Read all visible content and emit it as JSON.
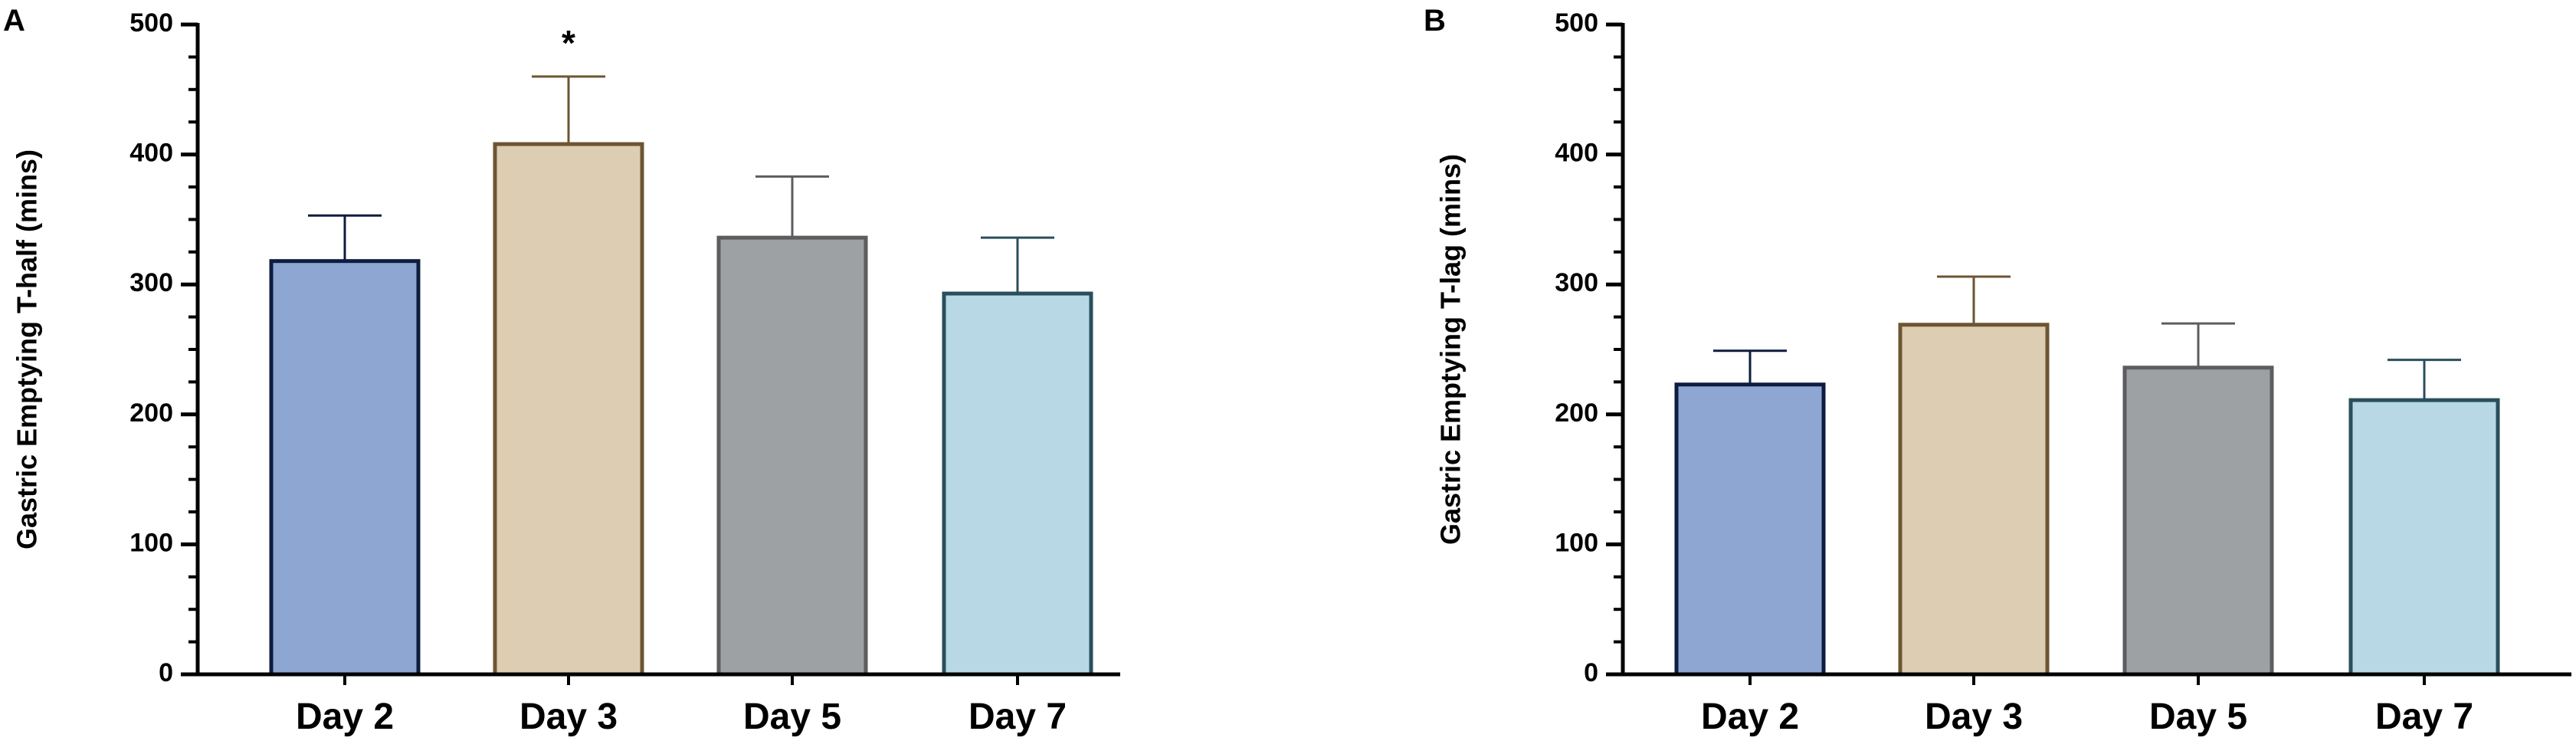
{
  "chart_data": [
    {
      "panel": "A",
      "type": "bar",
      "categories": [
        "Day 2",
        "Day 3",
        "Day 5",
        "Day 7"
      ],
      "values": [
        318,
        408,
        336,
        293
      ],
      "error": [
        35,
        52,
        47,
        43
      ],
      "ylabel": "Gastric Emptying T-half (mins)",
      "xlabel": "",
      "ylim": [
        0,
        500
      ],
      "yticks": [
        0,
        100,
        200,
        300,
        400,
        500
      ],
      "annotations": [
        {
          "category": "Day 3",
          "text": "*"
        }
      ],
      "colors": {
        "fill": [
          "#8ea7d2",
          "#dccdb3",
          "#9ea1a3",
          "#b8d8e5"
        ],
        "stroke": [
          "#0e1c3f",
          "#6d5533",
          "#5b5d5f",
          "#2a4f5c"
        ]
      },
      "grid": false
    },
    {
      "panel": "B",
      "type": "bar",
      "categories": [
        "Day 2",
        "Day 3",
        "Day 5",
        "Day 7"
      ],
      "values": [
        223,
        269,
        236,
        211
      ],
      "error": [
        26,
        37,
        34,
        31
      ],
      "ylabel": "Gastric Emptying T-lag (mins)",
      "xlabel": "",
      "ylim": [
        0,
        500
      ],
      "yticks": [
        0,
        100,
        200,
        300,
        400,
        500
      ],
      "annotations": [],
      "colors": {
        "fill": [
          "#8ea7d2",
          "#dccdb3",
          "#9ea1a3",
          "#b8d8e5"
        ],
        "stroke": [
          "#0e1c3f",
          "#6d5533",
          "#5b5d5f",
          "#2a4f5c"
        ]
      },
      "grid": false
    }
  ]
}
